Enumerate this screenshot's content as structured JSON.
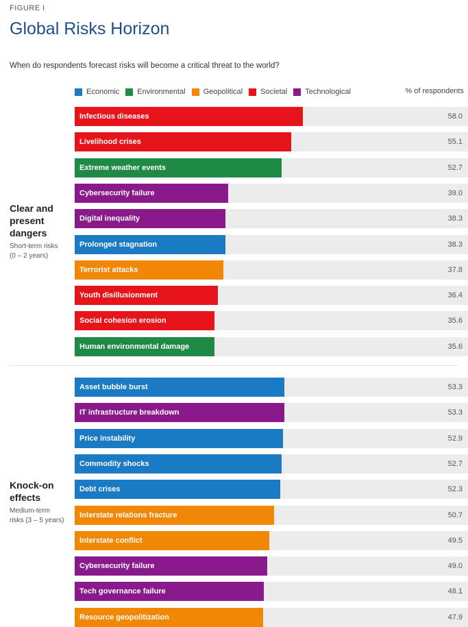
{
  "figure_label": "FIGURE I",
  "chart_data": {
    "type": "bar",
    "orientation": "horizontal",
    "title": "Global Risks Horizon",
    "subtitle": "When do respondents forecast risks will become a critical threat to the world?",
    "value_header": "% of respondents",
    "xlim": [
      0,
      100
    ],
    "legend_position": "top",
    "legend": [
      {
        "name": "Economic",
        "color": "#1a7ac4"
      },
      {
        "name": "Environmental",
        "color": "#1f8a45"
      },
      {
        "name": "Geopolitical",
        "color": "#f28705"
      },
      {
        "name": "Societal",
        "color": "#e8141b"
      },
      {
        "name": "Technological",
        "color": "#8a1a8c"
      }
    ],
    "groups": [
      {
        "title": "Clear and present dangers",
        "title_lines": [
          "Clear and",
          "present",
          "dangers"
        ],
        "subtitle_lines": [
          "Short-term risks",
          "(0 – 2 years)"
        ],
        "bars": [
          {
            "label": "Infectious diseases",
            "value": 58.0,
            "display": "58.0",
            "category": "Societal"
          },
          {
            "label": "Livelihood crises",
            "value": 55.1,
            "display": "55.1",
            "category": "Societal"
          },
          {
            "label": "Extreme weather events",
            "value": 52.7,
            "display": "52.7",
            "category": "Environmental"
          },
          {
            "label": "Cybersecurity failure",
            "value": 39.0,
            "display": "39.0",
            "category": "Technological"
          },
          {
            "label": "Digital inequality",
            "value": 38.3,
            "display": "38.3",
            "category": "Technological"
          },
          {
            "label": "Prolonged stagnation",
            "value": 38.3,
            "display": "38.3",
            "category": "Economic"
          },
          {
            "label": "Terrorist attacks",
            "value": 37.8,
            "display": "37.8",
            "category": "Geopolitical"
          },
          {
            "label": "Youth disillusionment",
            "value": 36.4,
            "display": "36.4",
            "category": "Societal"
          },
          {
            "label": "Social cohesion erosion",
            "value": 35.6,
            "display": "35.6",
            "category": "Societal"
          },
          {
            "label": "Human environmental damage",
            "value": 35.6,
            "display": "35.6",
            "category": "Environmental"
          }
        ]
      },
      {
        "title": "Knock-on effects",
        "title_lines": [
          "Knock-on",
          "effects"
        ],
        "subtitle_lines": [
          "Medium-term",
          "risks (3 – 5 years)"
        ],
        "bars": [
          {
            "label": "Asset bubble burst",
            "value": 53.3,
            "display": "53.3",
            "category": "Economic"
          },
          {
            "label": "IT infrastructure breakdown",
            "value": 53.3,
            "display": "53.3",
            "category": "Technological"
          },
          {
            "label": "Price instability",
            "value": 52.9,
            "display": "52.9",
            "category": "Economic"
          },
          {
            "label": "Commodity shocks",
            "value": 52.7,
            "display": "52.7",
            "category": "Economic"
          },
          {
            "label": "Debt crises",
            "value": 52.3,
            "display": "52.3",
            "category": "Economic"
          },
          {
            "label": "Interstate relations fracture",
            "value": 50.7,
            "display": "50.7",
            "category": "Geopolitical"
          },
          {
            "label": "Interstate conflict",
            "value": 49.5,
            "display": "49.5",
            "category": "Geopolitical"
          },
          {
            "label": "Cybersecurity failure",
            "value": 49.0,
            "display": "49.0",
            "category": "Technological"
          },
          {
            "label": "Tech governance failure",
            "value": 48.1,
            "display": "48.1",
            "category": "Technological"
          },
          {
            "label": "Resource geopolitization",
            "value": 47.9,
            "display": "47.9",
            "category": "Geopolitical"
          }
        ]
      }
    ]
  }
}
